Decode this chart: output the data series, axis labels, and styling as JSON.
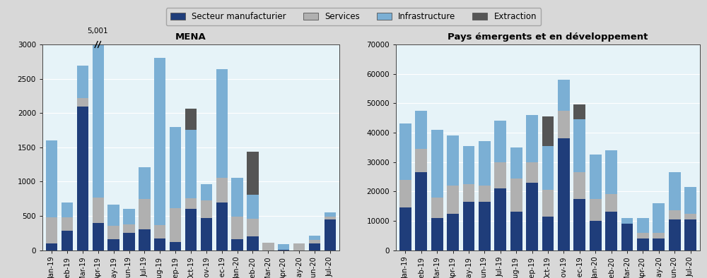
{
  "mena_categories": [
    "Jan-19",
    "Feb-19",
    "Mar-19",
    "Apr-19",
    "May-19",
    "Jun-19",
    "Jul-19",
    "Aug-19",
    "Sep-19",
    "Oct-19",
    "Nov-19",
    "Dec-19",
    "Jan-20",
    "Feb-20",
    "Mar-20",
    "Apr-20",
    "May-20",
    "Jun-20",
    "Jul-20"
  ],
  "mena_manufacturing": [
    100,
    280,
    2100,
    400,
    160,
    250,
    300,
    170,
    120,
    600,
    470,
    700,
    160,
    200,
    0,
    10,
    0,
    100,
    450
  ],
  "mena_services": [
    380,
    200,
    120,
    370,
    200,
    130,
    450,
    200,
    490,
    160,
    260,
    360,
    330,
    260,
    110,
    0,
    100,
    50,
    40
  ],
  "mena_infrastructure": [
    1120,
    220,
    470,
    2230,
    300,
    220,
    460,
    2430,
    1190,
    1000,
    230,
    1580,
    570,
    350,
    0,
    75,
    0,
    60,
    60
  ],
  "mena_extraction": [
    0,
    0,
    0,
    0,
    0,
    0,
    0,
    0,
    0,
    300,
    0,
    0,
    0,
    630,
    0,
    0,
    0,
    0,
    0
  ],
  "mena_ylim": [
    0,
    3000
  ],
  "mena_yticks": [
    0,
    500,
    1000,
    1500,
    2000,
    2500,
    3000
  ],
  "mena_annotation_val": "5,001",
  "mena_annotation_bar": 3,
  "ped_categories": [
    "Jan-19",
    "Feb-19",
    "Mar-19",
    "Apr-19",
    "May-19",
    "Jun-19",
    "Jul-19",
    "Aug-19",
    "Sep-19",
    "Oct-19",
    "Nov-19",
    "Dec-19",
    "Jan-20",
    "Feb-20",
    "Mar-20",
    "Apr-20",
    "May-20",
    "Jun-20",
    "Jul-20"
  ],
  "ped_manufacturing": [
    14500,
    26500,
    11000,
    12500,
    16500,
    16500,
    21000,
    13000,
    23000,
    11500,
    38000,
    17500,
    10000,
    13000,
    9000,
    4000,
    4000,
    10500,
    10500
  ],
  "ped_services": [
    9500,
    8000,
    7000,
    9500,
    6000,
    5500,
    9000,
    11500,
    7000,
    9000,
    9500,
    9000,
    7500,
    6000,
    0,
    2000,
    2000,
    3000,
    2000
  ],
  "ped_infrastructure": [
    19000,
    13000,
    23000,
    17000,
    13000,
    15000,
    14000,
    10500,
    16000,
    15000,
    10500,
    18000,
    15000,
    15000,
    2000,
    5000,
    10000,
    13000,
    9000
  ],
  "ped_extraction": [
    0,
    0,
    0,
    0,
    0,
    0,
    0,
    0,
    0,
    10000,
    0,
    5000,
    0,
    0,
    0,
    0,
    0,
    0,
    0
  ],
  "ped_ylim": [
    0,
    70000
  ],
  "ped_yticks": [
    0,
    10000,
    20000,
    30000,
    40000,
    50000,
    60000,
    70000
  ],
  "color_manufacturing": "#1f3d7a",
  "color_services": "#b0b0b0",
  "color_infrastructure": "#7bafd4",
  "color_extraction": "#555555",
  "title_mena": "MENA",
  "title_ped": "Pays émergents et en développement",
  "legend_labels": [
    "Secteur manufacturier",
    "Services",
    "Infrastructure",
    "Extraction"
  ],
  "bg_color": "#e6f3f8",
  "fig_bg_color": "#d8d8d8"
}
